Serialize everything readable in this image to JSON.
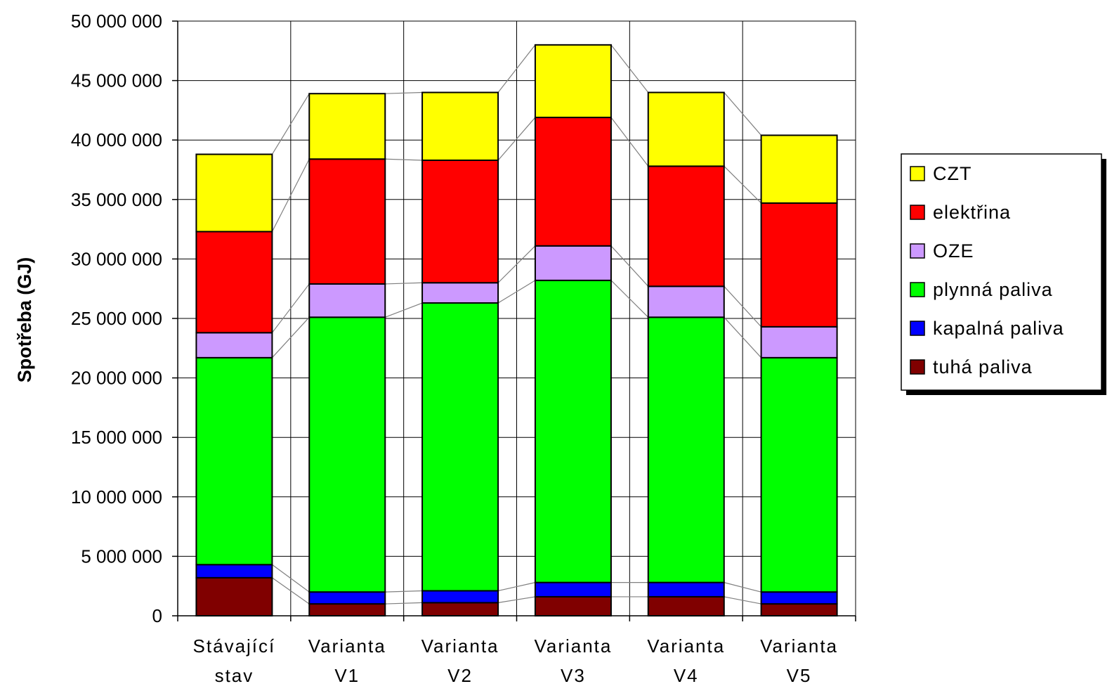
{
  "chart_data": {
    "type": "bar",
    "stacked": true,
    "ylabel": "Spotřeba (GJ)",
    "xlabel": "",
    "ylim": [
      0,
      50000000
    ],
    "yticks": [
      0,
      5000000,
      10000000,
      15000000,
      20000000,
      25000000,
      30000000,
      35000000,
      40000000,
      45000000,
      50000000
    ],
    "ytick_labels": [
      "0",
      "5 000 000",
      "10 000 000",
      "15 000 000",
      "20 000 000",
      "25 000 000",
      "30 000 000",
      "35 000 000",
      "40 000 000",
      "45 000 000",
      "50 000 000"
    ],
    "grid": true,
    "legend_position": "right",
    "series_lines": true,
    "categories": [
      {
        "line1": "Stávající",
        "line2": "stav"
      },
      {
        "line1": "Varianta",
        "line2": "V1"
      },
      {
        "line1": "Varianta",
        "line2": "V2"
      },
      {
        "line1": "Varianta",
        "line2": "V3"
      },
      {
        "line1": "Varianta",
        "line2": "V4"
      },
      {
        "line1": "Varianta",
        "line2": "V5"
      }
    ],
    "series": [
      {
        "name": "tuhá paliva",
        "color": "#800000",
        "values": [
          3200000,
          1000000,
          1100000,
          1600000,
          1600000,
          1000000
        ]
      },
      {
        "name": "kapalná paliva",
        "color": "#0000FF",
        "values": [
          1100000,
          1000000,
          1000000,
          1200000,
          1200000,
          1000000
        ]
      },
      {
        "name": "plynná paliva",
        "color": "#00FF00",
        "values": [
          17400000,
          23100000,
          24200000,
          25400000,
          22300000,
          19700000
        ]
      },
      {
        "name": "OZE",
        "color": "#CC99FF",
        "values": [
          2100000,
          2800000,
          1700000,
          2900000,
          2600000,
          2600000
        ]
      },
      {
        "name": "elektřina",
        "color": "#FF0000",
        "values": [
          8500000,
          10500000,
          10300000,
          10800000,
          10100000,
          10400000
        ]
      },
      {
        "name": "CZT",
        "color": "#FFFF00",
        "values": [
          6500000,
          5500000,
          5700000,
          6100000,
          6200000,
          5700000
        ]
      }
    ],
    "legend_order": [
      "CZT",
      "elektřina",
      "OZE",
      "plynná paliva",
      "kapalná paliva",
      "tuhá paliva"
    ]
  }
}
